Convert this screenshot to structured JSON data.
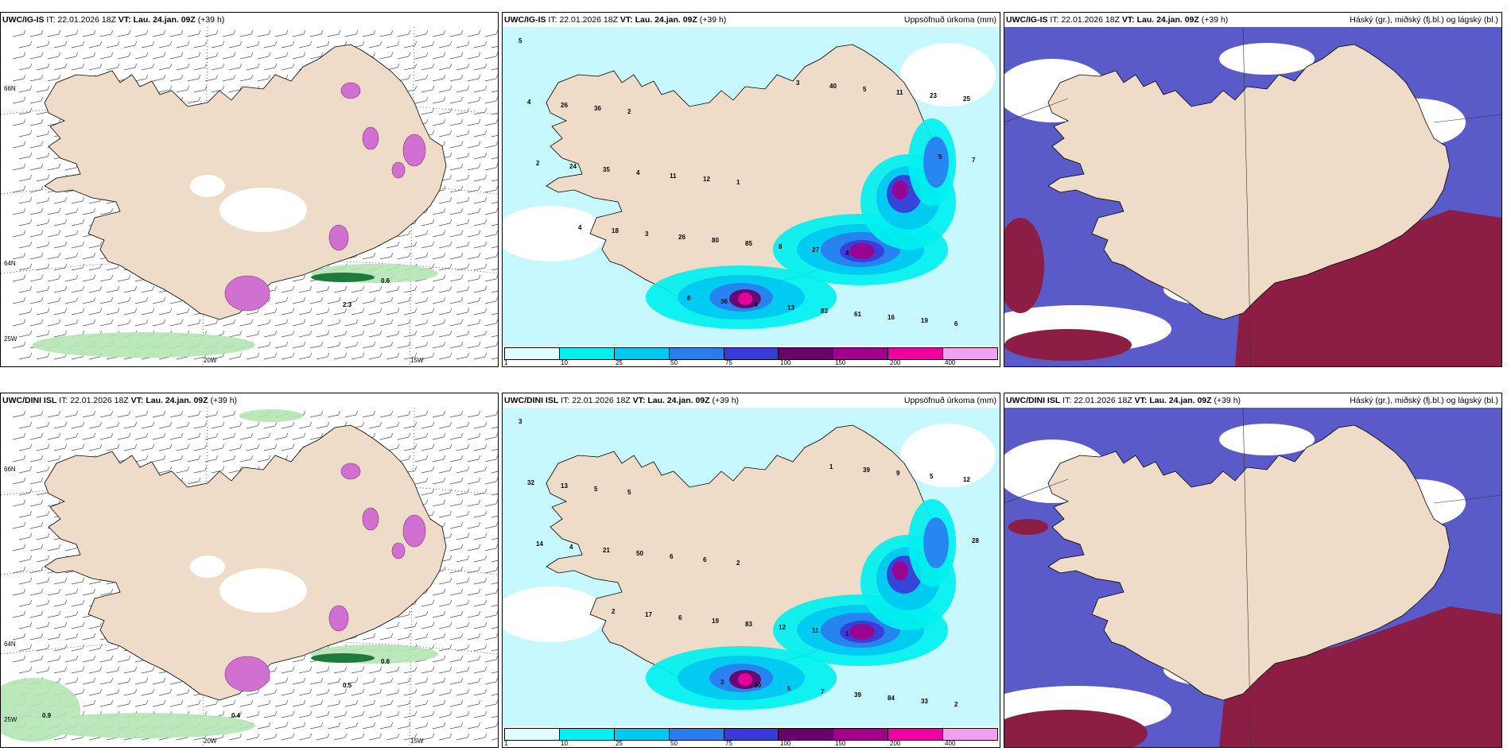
{
  "panels": {
    "p1": {
      "model": "UWC/IG-IS",
      "it_label": "IT:",
      "it": "22.01.2026 18Z",
      "vt_label": "VT:",
      "vt": "Lau. 24.jan. 09Z",
      "lead": "(+39 h)",
      "right": ""
    },
    "p2": {
      "model": "UWC/IG-IS",
      "it_label": "IT:",
      "it": "22.01.2026 18Z",
      "vt_label": "VT:",
      "vt": "Lau. 24.jan. 09Z",
      "lead": "(+39 h)",
      "right": "Uppsöfnuð úrkoma (mm)"
    },
    "p3": {
      "model": "UWC/IG-IS",
      "it_label": "IT:",
      "it": "22.01.2026 18Z",
      "vt_label": "VT:",
      "vt": "Lau. 24.jan. 09Z",
      "lead": "(+39 h)",
      "right": "Háský (gr.), miðský (fj.bl.) og lágský (bl.)"
    },
    "p4": {
      "model": "UWC/DINI ISL",
      "it_label": "IT:",
      "it": "22.01.2026 18Z",
      "vt_label": "VT:",
      "vt": "Lau. 24.jan. 09Z",
      "lead": "(+39 h)",
      "right": ""
    },
    "p5": {
      "model": "UWC/DINI ISL",
      "it_label": "IT:",
      "it": "22.01.2026 18Z",
      "vt_label": "VT:",
      "vt": "Lau. 24.jan. 09Z",
      "lead": "(+39 h)",
      "right": "Uppsöfnuð úrkoma (mm)"
    },
    "p6": {
      "model": "UWC/DINI ISL",
      "it_label": "IT:",
      "it": "22.01.2026 18Z",
      "vt_label": "VT:",
      "vt": "Lau. 24.jan. 09Z",
      "lead": "(+39 h)",
      "right": "Háský (gr.), miðský (fj.bl.) og lágský (bl.)"
    }
  },
  "axis_labels": {
    "lon_20w": "20W",
    "lon_15w": "15W",
    "lat_66n": "66N",
    "lat_64n": "64N",
    "lat_25w": "25W"
  },
  "precip_scale": {
    "ticks": [
      "1",
      "10",
      "25",
      "50",
      "75",
      "100",
      "150",
      "200",
      "400"
    ],
    "colors": [
      "#dffcff",
      "#00f0f0",
      "#00c8f0",
      "#2a7df0",
      "#3a3ad8",
      "#6a006a",
      "#a0008c",
      "#f000a0",
      "#f0a0f0"
    ]
  },
  "labels_top": {
    "wind_values": [
      "0.6",
      "2.3"
    ],
    "precip_values": [
      "5",
      "2",
      "1",
      "4",
      "6",
      "36",
      "12",
      "27",
      "19",
      "26",
      "11",
      "8",
      "16",
      "4",
      "4",
      "85",
      "61",
      "25",
      "35",
      "80",
      "83",
      "23",
      "24",
      "26",
      "13",
      "11",
      "2",
      "3",
      "4",
      "5",
      "7",
      "18",
      "36",
      "40",
      "5",
      "4",
      "8",
      "3"
    ]
  },
  "labels_bottom": {
    "wind_values": [
      "0.6",
      "0.5",
      "0.9",
      "0.4"
    ],
    "precip_values": [
      "3",
      "5",
      "2",
      "1",
      "2",
      "5",
      "6",
      "11",
      "33",
      "13",
      "6",
      "12",
      "84",
      "32",
      "50",
      "83",
      "39",
      "12",
      "21",
      "19",
      "7",
      "5",
      "4",
      "6",
      "5",
      "9",
      "14",
      "17",
      "30",
      "39",
      "28",
      "2",
      "3",
      "1"
    ]
  },
  "colors": {
    "land": "#efdcc8",
    "cloud_high": "#ffffff",
    "cloud_mid": "#5a5ac8",
    "cloud_low": "#8c1e46",
    "precip_light": "#c8f8ff",
    "green": "#b4e6b4",
    "magenta": "#d070d0"
  }
}
